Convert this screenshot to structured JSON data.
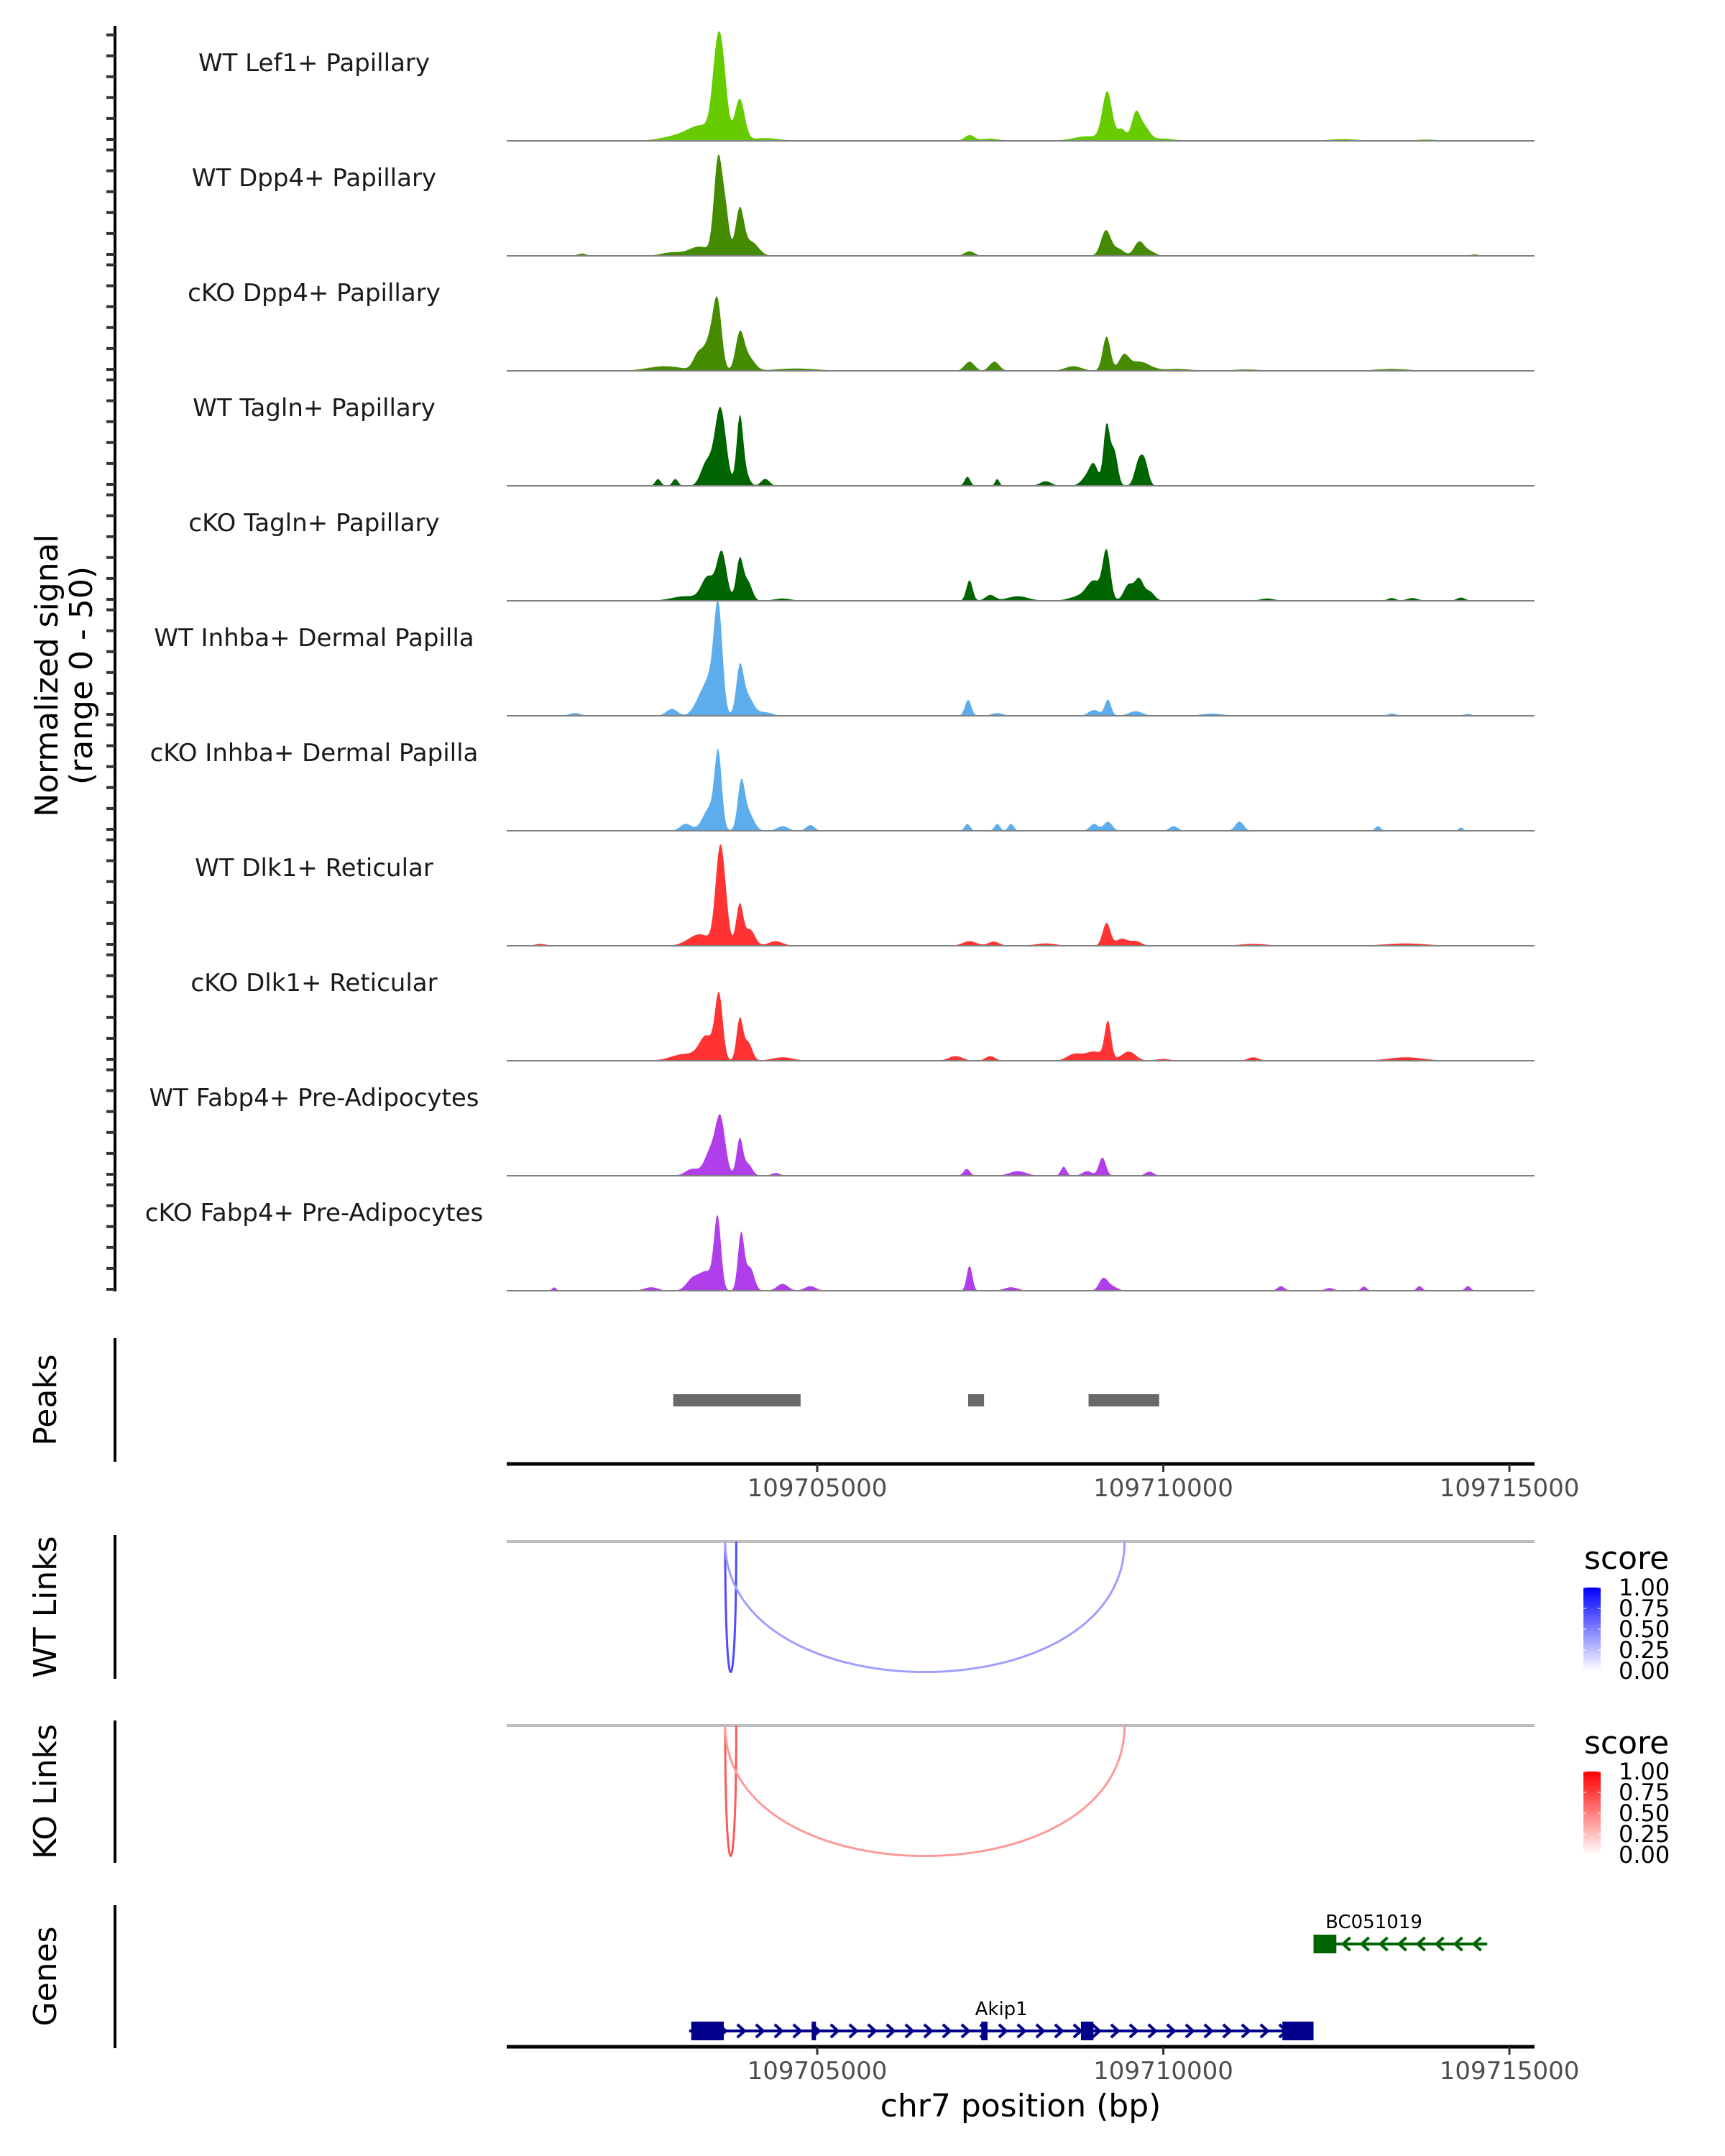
{
  "chart_data": {
    "type": "area",
    "title": "",
    "ylabel_line1": "Normalized signal",
    "ylabel_line2": "(range 0 - 50)",
    "xlabel": "chr7 position (bp)",
    "chromosome": "chr7",
    "xlim": [
      109700514,
      109715363
    ],
    "ylim": [
      0,
      50
    ],
    "x_ticks": [
      109705000,
      109710000,
      109715000
    ],
    "x_tick_labels": [
      "109705000",
      "109710000",
      "109715000"
    ],
    "grid": false,
    "tracks": [
      {
        "label": "WT Lef1+ Papillary",
        "color": "#66CC00",
        "peaks": [
          [
            109703560,
            37,
            70
          ],
          [
            109703650,
            18,
            60
          ],
          [
            109703880,
            18,
            70
          ],
          [
            109703350,
            6,
            200
          ],
          [
            109703000,
            2,
            250
          ],
          [
            109704250,
            1.2,
            200
          ],
          [
            109707200,
            2.5,
            70
          ],
          [
            109707500,
            1,
            120
          ],
          [
            109709190,
            21,
            70
          ],
          [
            109709400,
            5,
            60
          ],
          [
            109709600,
            11,
            60
          ],
          [
            109709720,
            6,
            80
          ],
          [
            109708900,
            2,
            200
          ],
          [
            109710000,
            1,
            150
          ],
          [
            109712600,
            0.8,
            200
          ],
          [
            109713800,
            0.6,
            150
          ]
        ]
      },
      {
        "label": "WT Dpp4+ Papillary",
        "color": "#458B00",
        "peaks": [
          [
            109703570,
            42,
            60
          ],
          [
            109703680,
            16,
            50
          ],
          [
            109703880,
            20,
            60
          ],
          [
            109704050,
            6,
            100
          ],
          [
            109703300,
            4,
            150
          ],
          [
            109702900,
            1.5,
            150
          ],
          [
            109701600,
            1,
            60
          ],
          [
            109707200,
            2,
            70
          ],
          [
            109709170,
            11,
            70
          ],
          [
            109709350,
            3,
            80
          ],
          [
            109709650,
            6,
            70
          ],
          [
            109709800,
            2,
            80
          ],
          [
            109714500,
            0.6,
            60
          ]
        ]
      },
      {
        "label": "cKO Dpp4+ Papillary",
        "color": "#458B00",
        "peaks": [
          [
            109703560,
            27,
            60
          ],
          [
            109703450,
            13,
            80
          ],
          [
            109703280,
            7,
            70
          ],
          [
            109703880,
            15,
            60
          ],
          [
            109704000,
            6,
            90
          ],
          [
            109702800,
            2,
            250
          ],
          [
            109704700,
            1,
            300
          ],
          [
            109707200,
            4,
            70
          ],
          [
            109707560,
            4,
            70
          ],
          [
            109708700,
            2,
            120
          ],
          [
            109709180,
            15,
            55
          ],
          [
            109709430,
            6,
            70
          ],
          [
            109709650,
            4,
            150
          ],
          [
            109710200,
            0.8,
            200
          ],
          [
            109711200,
            0.6,
            200
          ],
          [
            109713300,
            0.8,
            250
          ]
        ]
      },
      {
        "label": "WT Tagln+ Papillary",
        "color": "#006400",
        "peaks": [
          [
            109703600,
            34,
            80
          ],
          [
            109703400,
            10,
            80
          ],
          [
            109703880,
            28,
            45
          ],
          [
            109703950,
            6,
            60
          ],
          [
            109702700,
            3,
            40
          ],
          [
            109702950,
            3,
            40
          ],
          [
            109704250,
            3,
            60
          ],
          [
            109707170,
            4,
            40
          ],
          [
            109707600,
            3,
            30
          ],
          [
            109708300,
            2,
            80
          ],
          [
            109708900,
            4,
            80
          ],
          [
            109709180,
            26,
            45
          ],
          [
            109709290,
            15,
            50
          ],
          [
            109709000,
            8,
            60
          ],
          [
            109709650,
            11,
            60
          ],
          [
            109709740,
            8,
            50
          ]
        ]
      },
      {
        "label": "cKO Tagln+ Papillary",
        "color": "#006400",
        "peaks": [
          [
            109703620,
            21,
            70
          ],
          [
            109703420,
            10,
            90
          ],
          [
            109703880,
            18,
            50
          ],
          [
            109704000,
            8,
            60
          ],
          [
            109703100,
            2,
            200
          ],
          [
            109704500,
            1,
            120
          ],
          [
            109707200,
            9,
            45
          ],
          [
            109707500,
            2.5,
            70
          ],
          [
            109707900,
            2,
            150
          ],
          [
            109708800,
            2,
            150
          ],
          [
            109709180,
            21,
            55
          ],
          [
            109709000,
            8,
            100
          ],
          [
            109709500,
            7,
            70
          ],
          [
            109709650,
            9,
            60
          ],
          [
            109709800,
            4,
            70
          ],
          [
            109711500,
            1,
            100
          ],
          [
            109713300,
            1.2,
            60
          ],
          [
            109713600,
            1.2,
            80
          ],
          [
            109714300,
            1.4,
            60
          ]
        ]
      },
      {
        "label": "WT Inhba+ Dermal Papilla",
        "color": "#5DADEC",
        "peaks": [
          [
            109703570,
            45,
            60
          ],
          [
            109703450,
            14,
            90
          ],
          [
            109703300,
            6,
            90
          ],
          [
            109703880,
            18,
            50
          ],
          [
            109703980,
            9,
            90
          ],
          [
            109702900,
            3,
            80
          ],
          [
            109704250,
            1.5,
            100
          ],
          [
            109701500,
            1.2,
            80
          ],
          [
            109707180,
            7,
            45
          ],
          [
            109707600,
            1.2,
            80
          ],
          [
            109709200,
            7,
            45
          ],
          [
            109709000,
            2.5,
            80
          ],
          [
            109709600,
            2,
            100
          ],
          [
            109710700,
            1,
            150
          ],
          [
            109713300,
            1,
            60
          ],
          [
            109714400,
            0.8,
            60
          ]
        ]
      },
      {
        "label": "cKO Inhba+ Dermal Papilla",
        "color": "#5DADEC",
        "peaks": [
          [
            109703570,
            31,
            50
          ],
          [
            109703450,
            10,
            100
          ],
          [
            109703900,
            19,
            50
          ],
          [
            109704000,
            8,
            80
          ],
          [
            109703100,
            3,
            80
          ],
          [
            109704500,
            2,
            80
          ],
          [
            109704900,
            2.5,
            60
          ],
          [
            109707170,
            3,
            40
          ],
          [
            109707600,
            3,
            40
          ],
          [
            109707800,
            3,
            40
          ],
          [
            109709000,
            3,
            60
          ],
          [
            109709200,
            4,
            60
          ],
          [
            109710150,
            2,
            60
          ],
          [
            109711100,
            4,
            60
          ],
          [
            109713100,
            2,
            40
          ],
          [
            109714300,
            1.5,
            30
          ]
        ]
      },
      {
        "label": "WT Dlk1+ Reticular",
        "color": "#FF3333",
        "peaks": [
          [
            109703580,
            31,
            60
          ],
          [
            109703650,
            20,
            60
          ],
          [
            109703880,
            18,
            50
          ],
          [
            109704030,
            7,
            70
          ],
          [
            109703300,
            5,
            160
          ],
          [
            109704400,
            2,
            100
          ],
          [
            109701000,
            0.8,
            80
          ],
          [
            109707200,
            2,
            100
          ],
          [
            109707550,
            1.8,
            80
          ],
          [
            109708300,
            1,
            150
          ],
          [
            109709180,
            10,
            55
          ],
          [
            109709400,
            3,
            80
          ],
          [
            109709600,
            2,
            80
          ],
          [
            109711300,
            0.8,
            200
          ],
          [
            109713500,
            1,
            300
          ]
        ]
      },
      {
        "label": "cKO Dlk1+ Reticular",
        "color": "#FF3333",
        "peaks": [
          [
            109703580,
            28,
            55
          ],
          [
            109703400,
            10,
            100
          ],
          [
            109703880,
            18,
            45
          ],
          [
            109704000,
            8,
            60
          ],
          [
            109703100,
            3,
            200
          ],
          [
            109704500,
            1.5,
            150
          ],
          [
            109707000,
            2,
            100
          ],
          [
            109707500,
            2,
            70
          ],
          [
            109708700,
            2.5,
            100
          ],
          [
            109709200,
            16,
            45
          ],
          [
            109709000,
            4,
            150
          ],
          [
            109709500,
            4,
            100
          ],
          [
            109710000,
            0.8,
            100
          ],
          [
            109711300,
            1.5,
            80
          ],
          [
            109713500,
            1.5,
            250
          ]
        ]
      },
      {
        "label": "WT Fabp4+ Pre-Adipocytes",
        "color": "#B03FEB",
        "peaks": [
          [
            109703600,
            25,
            70
          ],
          [
            109703450,
            10,
            80
          ],
          [
            109703880,
            16,
            45
          ],
          [
            109704000,
            5,
            60
          ],
          [
            109703200,
            3,
            100
          ],
          [
            109704400,
            1.2,
            60
          ],
          [
            109707160,
            3,
            45
          ],
          [
            109707900,
            2,
            120
          ],
          [
            109708560,
            4,
            40
          ],
          [
            109709120,
            8,
            50
          ],
          [
            109708900,
            2,
            70
          ],
          [
            109709800,
            1.8,
            60
          ]
        ]
      },
      {
        "label": "cKO Fabp4+ Pre-Adipocytes",
        "color": "#B03FEB",
        "peaks": [
          [
            109703560,
            31,
            50
          ],
          [
            109703900,
            25,
            45
          ],
          [
            109704030,
            10,
            60
          ],
          [
            109703400,
            8,
            100
          ],
          [
            109703200,
            5,
            90
          ],
          [
            109702600,
            1.5,
            100
          ],
          [
            109704500,
            3,
            80
          ],
          [
            109704900,
            2,
            80
          ],
          [
            109701200,
            1.5,
            30
          ],
          [
            109707200,
            11,
            40
          ],
          [
            109707800,
            1.5,
            100
          ],
          [
            109709130,
            5,
            60
          ],
          [
            109709250,
            2,
            80
          ],
          [
            109711700,
            2,
            50
          ],
          [
            109712400,
            1.2,
            60
          ],
          [
            109712900,
            1.8,
            40
          ],
          [
            109713700,
            2,
            40
          ],
          [
            109714400,
            2,
            40
          ]
        ]
      }
    ],
    "peaks_track": {
      "label": "Peaks",
      "color": "#696969",
      "regions": [
        [
          109702920,
          109704760
        ],
        [
          109707180,
          109707410
        ],
        [
          109708920,
          109709940
        ]
      ]
    },
    "links_tracks": [
      {
        "label": "WT Links",
        "legend_title": "score",
        "legend_ticks": [
          "1.00",
          "0.75",
          "0.50",
          "0.25",
          "0.00"
        ],
        "color_low": "#FFFFFF",
        "color_high": "#0000FF",
        "links": [
          {
            "start": 109703670,
            "end": 109703830,
            "score": 0.7
          },
          {
            "start": 109703670,
            "end": 109709440,
            "score": 0.38
          }
        ]
      },
      {
        "label": "KO Links",
        "legend_title": "score",
        "legend_ticks": [
          "1.00",
          "0.75",
          "0.50",
          "0.25",
          "0.00"
        ],
        "color_low": "#FFFFFF",
        "color_high": "#FF0000",
        "links": [
          {
            "start": 109703670,
            "end": 109703830,
            "score": 0.65
          },
          {
            "start": 109703670,
            "end": 109709440,
            "score": 0.4
          }
        ]
      }
    ],
    "genes_track": {
      "label": "Genes",
      "genes": [
        {
          "name": "Akip1",
          "strand": "+",
          "color": "#00008B",
          "start": 109703150,
          "end": 109712170,
          "exons": [
            [
              109703180,
              109703650
            ],
            [
              109704920,
              109704980
            ],
            [
              109707370,
              109707460
            ],
            [
              109708810,
              109708990
            ],
            [
              109711720,
              109712170
            ]
          ]
        },
        {
          "name": "BC051019",
          "strand": "-",
          "color": "#006400",
          "start": 109712170,
          "end": 109714680,
          "exons": [
            [
              109712170,
              109712500
            ]
          ]
        }
      ]
    }
  }
}
